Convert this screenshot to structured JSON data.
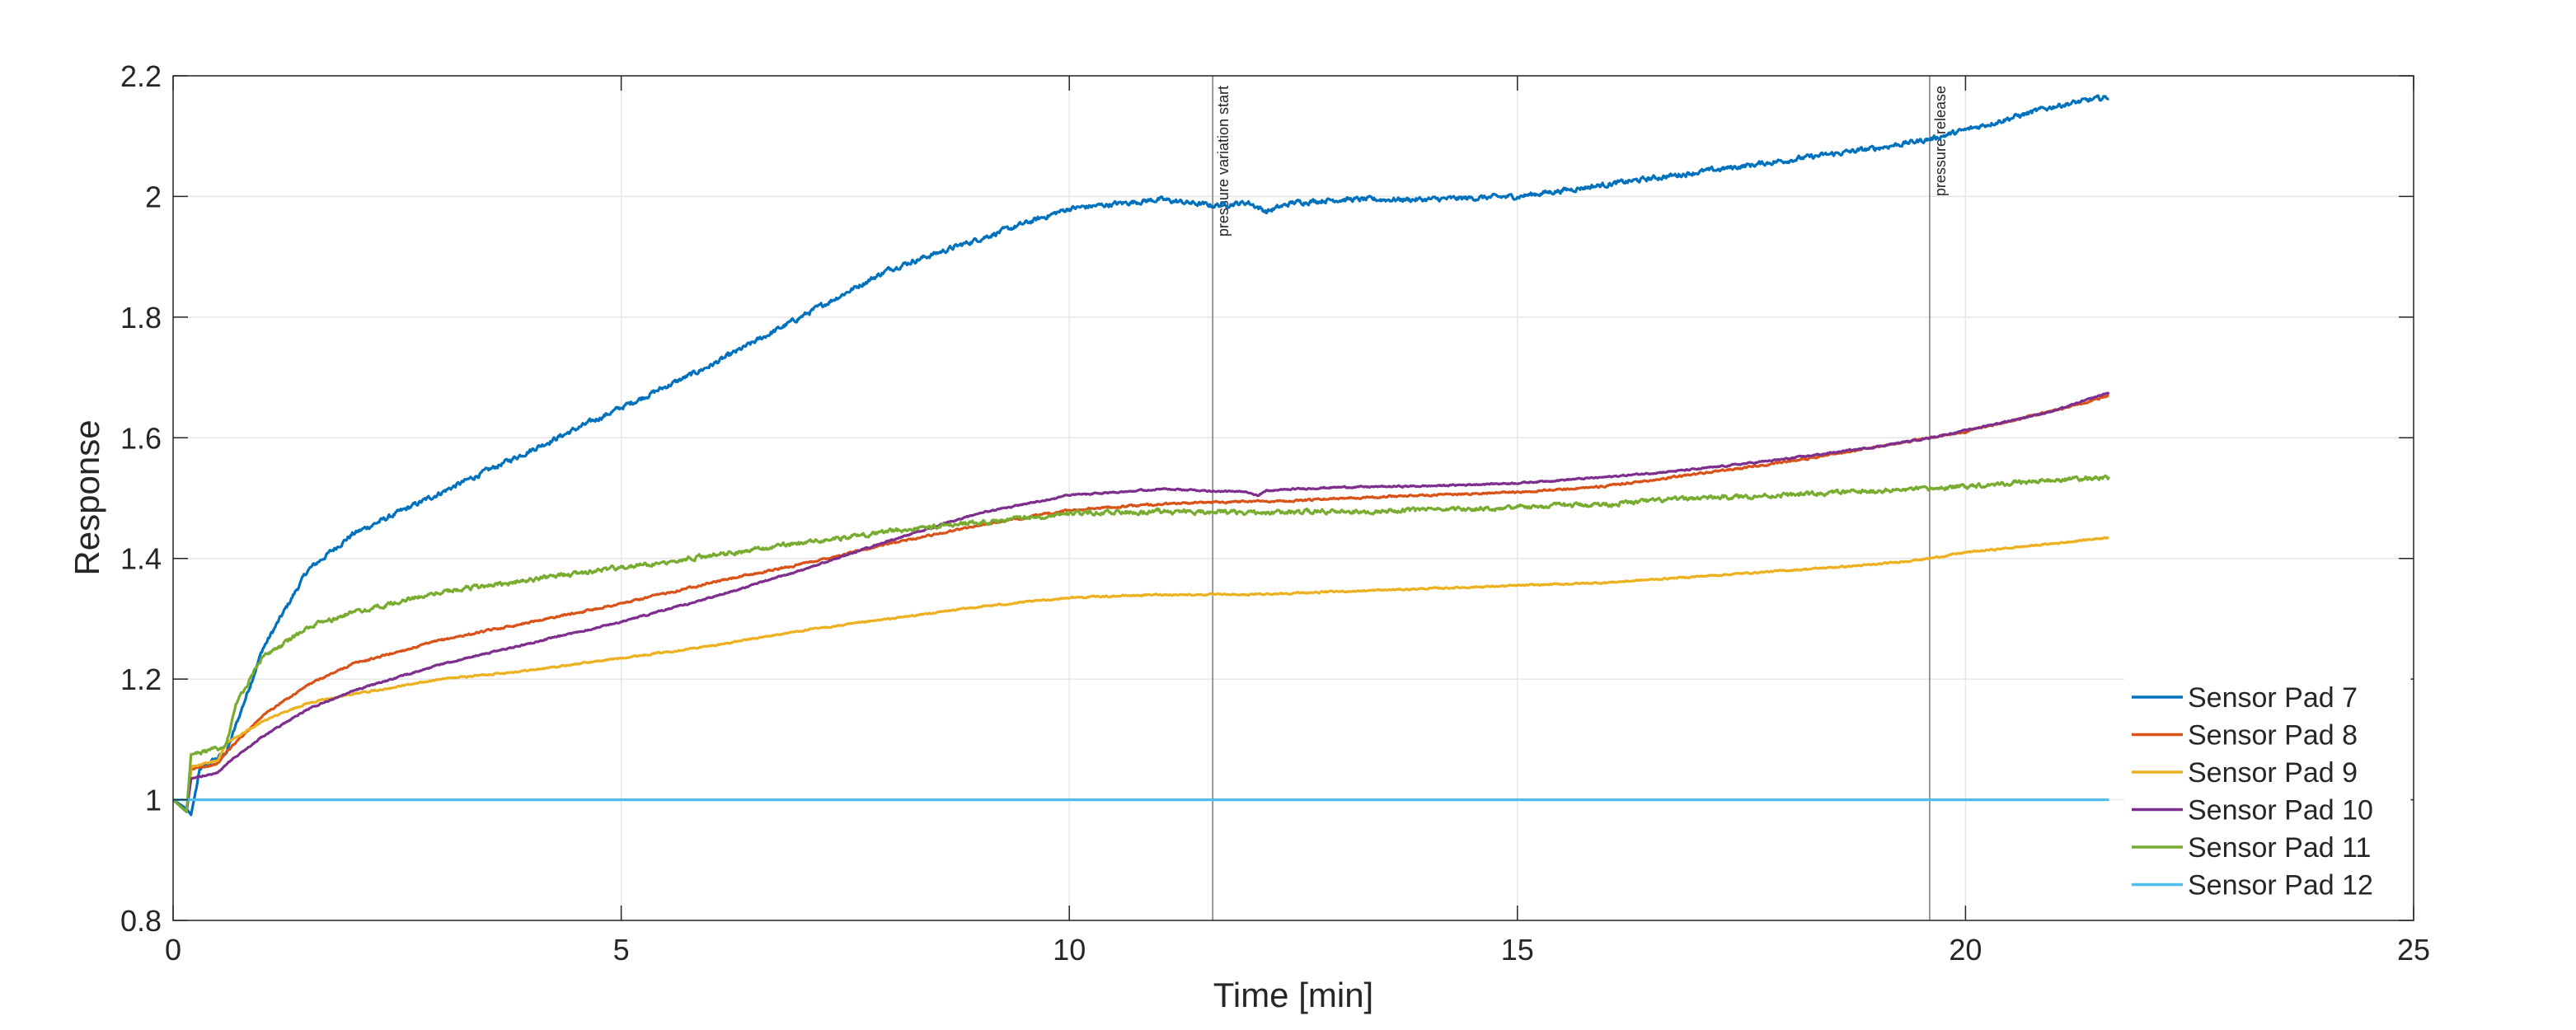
{
  "chart_data": {
    "type": "line",
    "xlabel": "Time [min]",
    "ylabel": "Response",
    "xlim": [
      0,
      25
    ],
    "ylim": [
      0.8,
      2.2
    ],
    "xticks": [
      0,
      5,
      10,
      15,
      20,
      25
    ],
    "yticks": [
      0.8,
      1,
      1.2,
      1.4,
      1.6,
      1.8,
      2,
      2.2
    ],
    "grid": true,
    "legend_position": "bottom-right",
    "annotations": [
      {
        "x": 11.6,
        "text": "pressure variation start"
      },
      {
        "x": 19.6,
        "text": "pressure release"
      }
    ],
    "series": [
      {
        "name": "Sensor Pad 7",
        "color": "#0072BD",
        "x": [
          0,
          0.15,
          0.2,
          0.3,
          0.6,
          1,
          1.5,
          2,
          3,
          4,
          5,
          6,
          7,
          8,
          9,
          10,
          11,
          11.6,
          12,
          12.2,
          12.5,
          13,
          14,
          15,
          16,
          17,
          18,
          19,
          19.6,
          20,
          21,
          21.6
        ],
        "y": [
          1.0,
          0.985,
          0.975,
          1.05,
          1.08,
          1.25,
          1.38,
          1.44,
          1.51,
          1.58,
          1.65,
          1.72,
          1.8,
          1.88,
          1.93,
          1.98,
          1.995,
          1.985,
          1.99,
          1.975,
          1.99,
          1.995,
          1.995,
          2.0,
          2.02,
          2.04,
          2.06,
          2.08,
          2.095,
          2.11,
          2.15,
          2.165
        ],
        "noise": 0.004
      },
      {
        "name": "Sensor Pad 8",
        "color": "#D95319",
        "x": [
          0,
          0.15,
          0.2,
          0.5,
          0.6,
          1,
          1.5,
          2,
          3,
          4,
          5,
          6,
          7,
          8,
          9,
          10,
          11,
          12,
          12.5,
          13,
          14,
          15,
          16,
          17,
          18,
          19,
          19.6,
          20,
          21,
          21.6
        ],
        "y": [
          1.0,
          0.98,
          1.05,
          1.06,
          1.08,
          1.14,
          1.19,
          1.225,
          1.265,
          1.295,
          1.325,
          1.36,
          1.39,
          1.425,
          1.455,
          1.48,
          1.49,
          1.495,
          1.495,
          1.5,
          1.505,
          1.51,
          1.52,
          1.54,
          1.56,
          1.585,
          1.6,
          1.61,
          1.645,
          1.67
        ],
        "noise": 0.0015
      },
      {
        "name": "Sensor Pad 9",
        "color": "#EDB120",
        "x": [
          0,
          0.15,
          0.2,
          0.5,
          0.6,
          1,
          1.5,
          2,
          3,
          4,
          5,
          6,
          7,
          8,
          9,
          10,
          11,
          12,
          13,
          14,
          15,
          16,
          17,
          18,
          19,
          19.6,
          20,
          21,
          21.6
        ],
        "y": [
          1.0,
          0.98,
          1.055,
          1.065,
          1.095,
          1.13,
          1.16,
          1.175,
          1.2,
          1.215,
          1.235,
          1.255,
          1.28,
          1.3,
          1.32,
          1.335,
          1.34,
          1.34,
          1.345,
          1.35,
          1.355,
          1.36,
          1.37,
          1.38,
          1.39,
          1.4,
          1.41,
          1.425,
          1.435
        ],
        "noise": 0.0012
      },
      {
        "name": "Sensor Pad 10",
        "color": "#7E2F8E",
        "x": [
          0,
          0.15,
          0.2,
          0.5,
          0.6,
          1,
          1.5,
          2,
          3,
          4,
          5,
          6,
          7,
          8,
          9,
          10,
          11,
          12,
          12.1,
          12.2,
          12.5,
          13,
          14,
          15,
          16,
          17,
          18,
          19,
          19.6,
          20,
          21,
          21.6
        ],
        "y": [
          1.0,
          0.98,
          1.035,
          1.045,
          1.06,
          1.105,
          1.15,
          1.18,
          1.225,
          1.26,
          1.295,
          1.335,
          1.38,
          1.43,
          1.475,
          1.505,
          1.515,
          1.51,
          1.505,
          1.512,
          1.515,
          1.518,
          1.52,
          1.525,
          1.535,
          1.548,
          1.565,
          1.585,
          1.6,
          1.612,
          1.645,
          1.675
        ],
        "noise": 0.0012
      },
      {
        "name": "Sensor Pad 11",
        "color": "#77AC30",
        "x": [
          0,
          0.15,
          0.2,
          0.5,
          0.6,
          0.7,
          1,
          1.5,
          2,
          3,
          4,
          5,
          6,
          7,
          8,
          9,
          10,
          11,
          12,
          13,
          14,
          15,
          16,
          17,
          18,
          19,
          19.6,
          20,
          21,
          21.6
        ],
        "y": [
          1.0,
          0.98,
          1.075,
          1.085,
          1.095,
          1.16,
          1.235,
          1.285,
          1.31,
          1.345,
          1.365,
          1.385,
          1.405,
          1.425,
          1.445,
          1.46,
          1.475,
          1.478,
          1.476,
          1.478,
          1.48,
          1.485,
          1.49,
          1.5,
          1.505,
          1.512,
          1.515,
          1.52,
          1.53,
          1.535
        ],
        "noise": 0.0035
      },
      {
        "name": "Sensor Pad 12",
        "color": "#4DBEEE",
        "x": [
          0,
          21.6
        ],
        "y": [
          1.0,
          1.0
        ],
        "noise": 0
      }
    ]
  }
}
